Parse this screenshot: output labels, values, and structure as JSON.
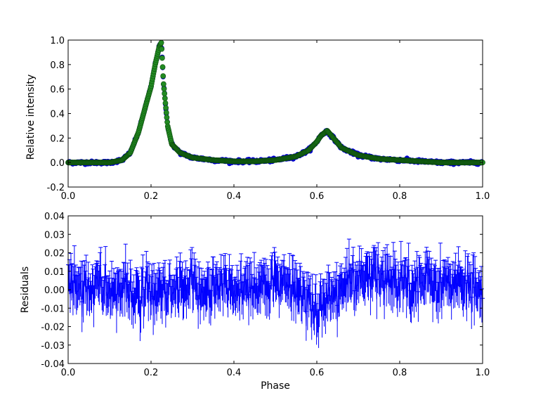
{
  "chart_data": [
    {
      "type": "scatter",
      "ylabel": "Relative intensity",
      "xlim": [
        0.0,
        1.0
      ],
      "ylim": [
        -0.2,
        1.0
      ],
      "x_ticks": [
        "0.0",
        "0.2",
        "0.4",
        "0.6",
        "0.8",
        "1.0"
      ],
      "y_ticks": [
        "-0.2",
        "0.0",
        "0.2",
        "0.4",
        "0.6",
        "0.8",
        "1.0"
      ],
      "grid": false,
      "colors": {
        "data": "#0000cc",
        "model": "#228b22",
        "model_edge": "#0d4d0d"
      },
      "series": [
        {
          "x": [
            0.0,
            0.05,
            0.1,
            0.13,
            0.15,
            0.17,
            0.19,
            0.2,
            0.21,
            0.22,
            0.225,
            0.23,
            0.24,
            0.25,
            0.27,
            0.3,
            0.35,
            0.4,
            0.45,
            0.5,
            0.55,
            0.58,
            0.6,
            0.61,
            0.625,
            0.64,
            0.66,
            0.7,
            0.75,
            0.8,
            0.85,
            0.9,
            0.95,
            1.0
          ],
          "y": [
            0.0,
            0.0,
            0.0,
            0.02,
            0.08,
            0.25,
            0.5,
            0.62,
            0.8,
            0.95,
            0.98,
            0.65,
            0.3,
            0.15,
            0.08,
            0.04,
            0.02,
            0.01,
            0.01,
            0.02,
            0.05,
            0.1,
            0.17,
            0.22,
            0.26,
            0.2,
            0.12,
            0.06,
            0.03,
            0.02,
            0.01,
            0.0,
            0.0,
            0.0
          ]
        }
      ]
    },
    {
      "type": "line",
      "xlabel": "Phase",
      "ylabel": "Residuals",
      "xlim": [
        0.0,
        1.0
      ],
      "ylim": [
        -0.04,
        0.04
      ],
      "x_ticks": [
        "0.0",
        "0.2",
        "0.4",
        "0.6",
        "0.8",
        "1.0"
      ],
      "y_ticks": [
        "-0.04",
        "-0.03",
        "-0.02",
        "-0.01",
        "0.00",
        "0.01",
        "0.02",
        "0.03",
        "0.04"
      ],
      "grid": false,
      "colors": {
        "line": "#0000ff"
      },
      "error_bar_half_width": 0.009,
      "series": [
        {
          "x": [
            0.0,
            0.05,
            0.1,
            0.15,
            0.2,
            0.25,
            0.3,
            0.35,
            0.4,
            0.45,
            0.5,
            0.55,
            0.58,
            0.6,
            0.62,
            0.65,
            0.7,
            0.75,
            0.8,
            0.85,
            0.9,
            0.95,
            1.0
          ],
          "y": [
            0.003,
            0.002,
            0.0,
            -0.002,
            -0.004,
            -0.003,
            0.0,
            0.001,
            0.001,
            0.002,
            0.002,
            0.0,
            -0.006,
            -0.01,
            -0.008,
            0.0,
            0.005,
            0.006,
            0.005,
            0.004,
            0.003,
            0.002,
            0.001
          ]
        }
      ]
    }
  ]
}
